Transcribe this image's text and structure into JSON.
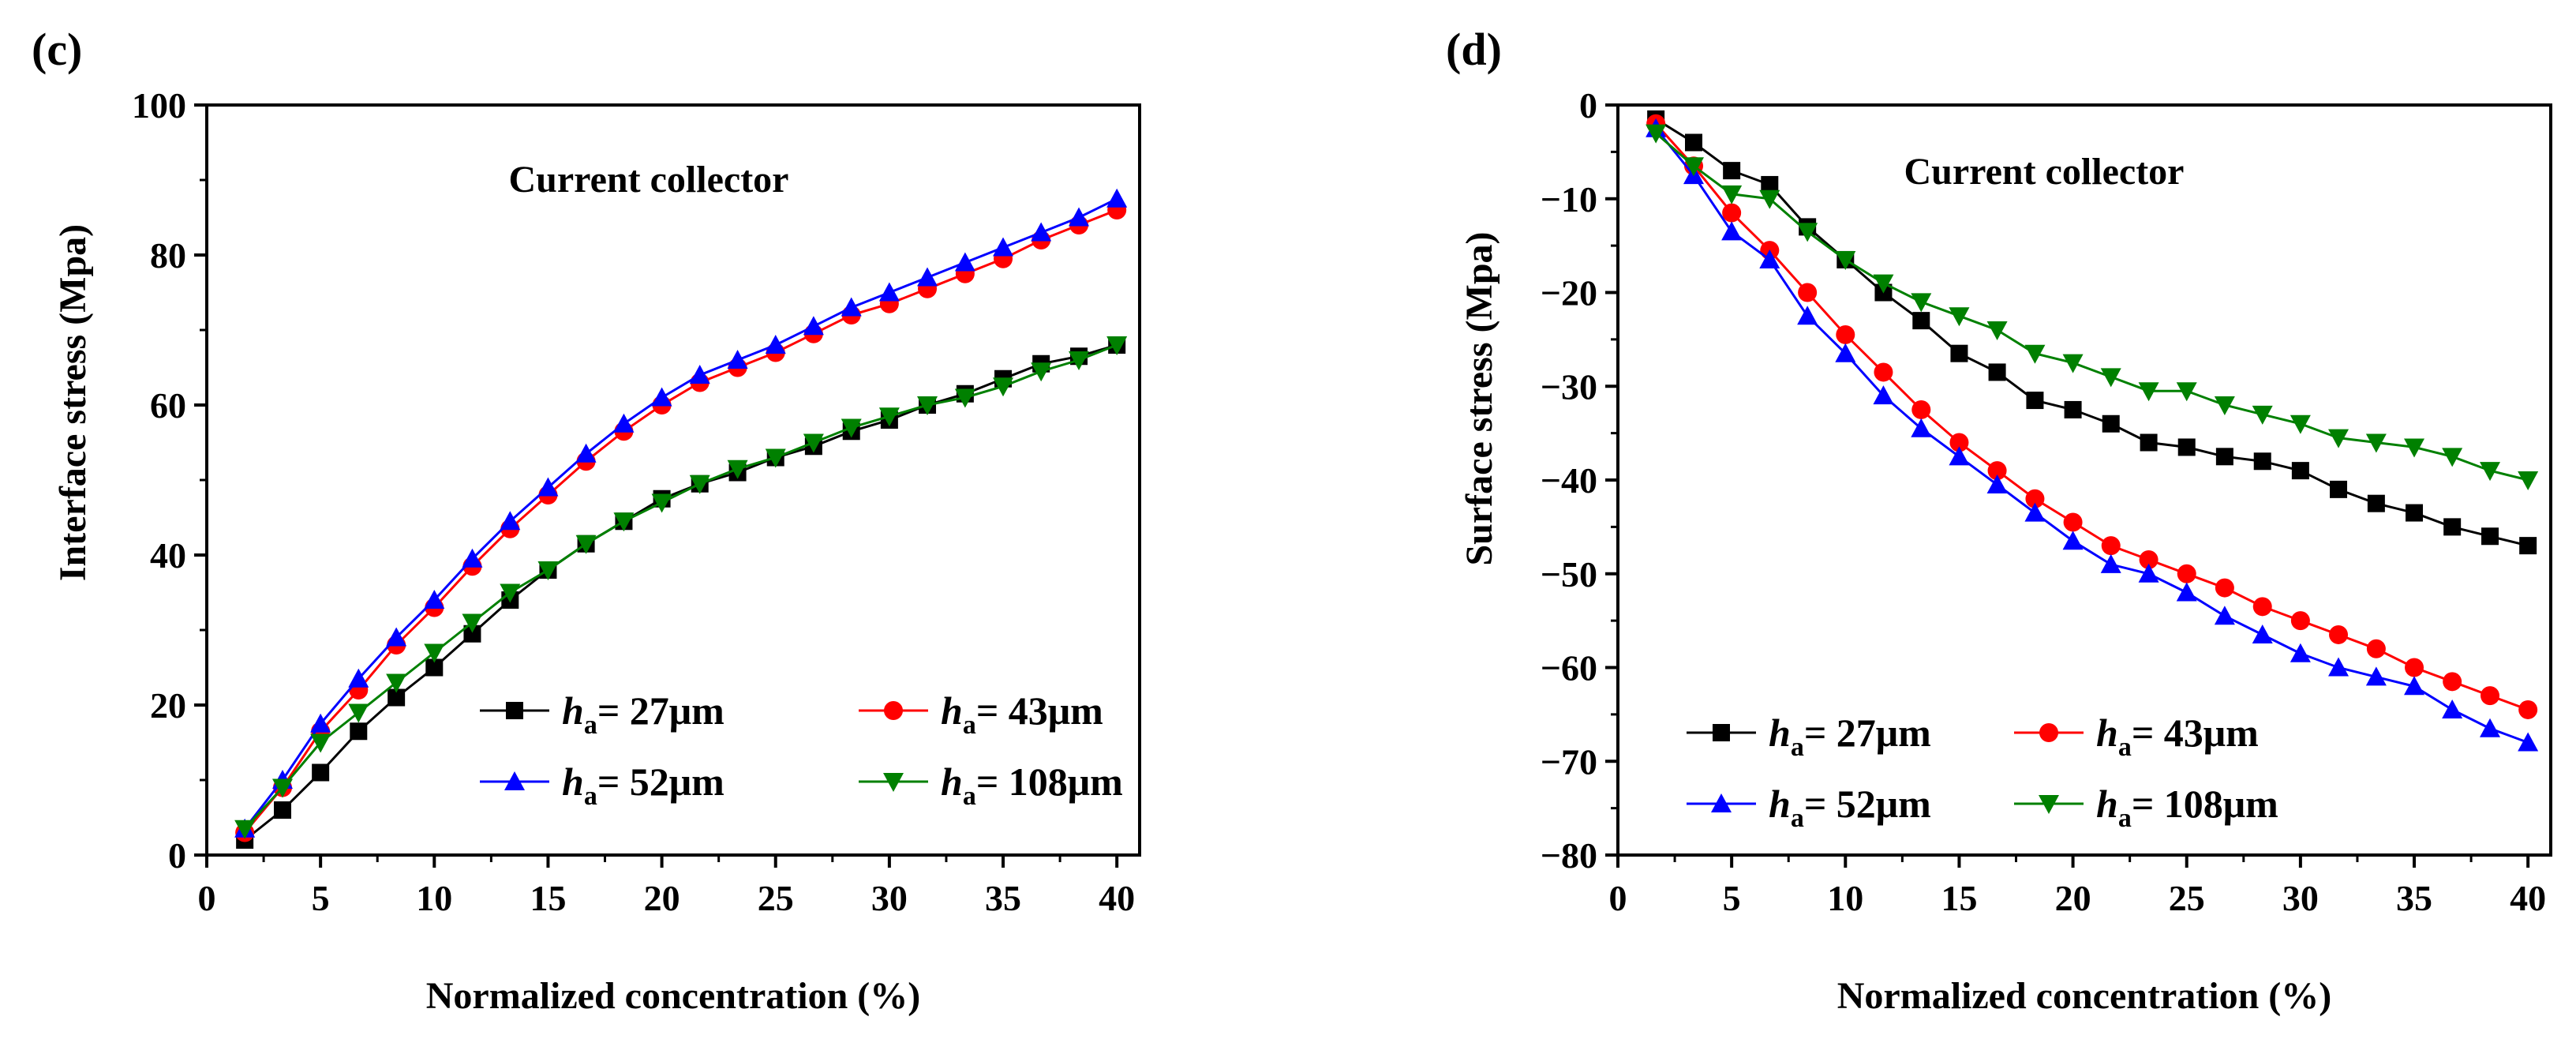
{
  "chart_data": [
    {
      "type": "line",
      "panel_label": "(c)",
      "annotation": "Current collector",
      "xlabel": "Normalized concentration (%)",
      "ylabel": "Interface stress (Mpa)",
      "xlim": [
        0,
        41
      ],
      "ylim": [
        0,
        100
      ],
      "x_ticks": [
        0,
        5,
        10,
        15,
        20,
        25,
        30,
        35,
        40
      ],
      "y_ticks": [
        0,
        20,
        40,
        60,
        80,
        100
      ],
      "x": [
        1.67,
        3.33,
        5.0,
        6.67,
        8.33,
        10.0,
        11.67,
        13.33,
        15.0,
        16.67,
        18.33,
        20.0,
        21.67,
        23.33,
        25.0,
        26.67,
        28.33,
        30.0,
        31.67,
        33.33,
        35.0,
        36.67,
        38.33,
        40.0
      ],
      "series": [
        {
          "name_sym": "h",
          "name_sub": "a",
          "name_val": "= 27μm",
          "color": "#000000",
          "marker": "square",
          "values": [
            2,
            6,
            11,
            16.5,
            21,
            25,
            29.5,
            34,
            38,
            41.5,
            44.5,
            47.5,
            49.5,
            51,
            53,
            54.5,
            56.5,
            58,
            60,
            61.5,
            63.5,
            65.5,
            66.5,
            68
          ]
        },
        {
          "name_sym": "h",
          "name_sub": "a",
          "name_val": "= 43μm",
          "color": "#ff0000",
          "marker": "circle",
          "values": [
            3,
            9,
            16.5,
            22,
            28,
            33,
            38.5,
            43.5,
            48,
            52.5,
            56.5,
            60,
            63,
            65,
            67,
            69.5,
            72,
            73.5,
            75.5,
            77.5,
            79.5,
            82,
            84,
            86
          ]
        },
        {
          "name_sym": "h",
          "name_sub": "a",
          "name_val": "= 52μm",
          "color": "#0000ff",
          "marker": "triangle-up",
          "values": [
            3.5,
            10,
            17.5,
            23.5,
            29,
            34,
            39.5,
            44.5,
            49,
            53.5,
            57.5,
            61,
            64,
            66,
            68,
            70.5,
            73,
            75,
            77,
            79,
            81,
            83,
            85,
            87.5
          ]
        },
        {
          "name_sym": "h",
          "name_sub": "a",
          "name_val": "= 108μm",
          "color": "#008000",
          "marker": "triangle-down",
          "values": [
            3.5,
            9,
            15,
            19,
            23,
            27,
            31,
            35,
            38,
            41.5,
            44.5,
            47,
            49.5,
            51.5,
            53,
            55,
            57,
            58.5,
            60,
            61,
            62.5,
            64.5,
            66,
            68
          ]
        }
      ]
    },
    {
      "type": "line",
      "panel_label": "(d)",
      "annotation": "Current collector",
      "xlabel": "Normalized concentration (%)",
      "ylabel": "Surface stress (Mpa)",
      "xlim": [
        0,
        41
      ],
      "ylim": [
        -80,
        0
      ],
      "x_ticks": [
        0,
        5,
        10,
        15,
        20,
        25,
        30,
        35,
        40
      ],
      "y_ticks": [
        0,
        -10,
        -20,
        -30,
        -40,
        -50,
        -60,
        -70,
        -80
      ],
      "x": [
        1.67,
        3.33,
        5.0,
        6.67,
        8.33,
        10.0,
        11.67,
        13.33,
        15.0,
        16.67,
        18.33,
        20.0,
        21.67,
        23.33,
        25.0,
        26.67,
        28.33,
        30.0,
        31.67,
        33.33,
        35.0,
        36.67,
        38.33,
        40.0
      ],
      "series": [
        {
          "name_sym": "h",
          "name_sub": "a",
          "name_val": "= 27μm",
          "color": "#000000",
          "marker": "square",
          "values": [
            -1.5,
            -4,
            -7,
            -8.5,
            -13,
            -16.5,
            -20,
            -23,
            -26.5,
            -28.5,
            -31.5,
            -32.5,
            -34,
            -36,
            -36.5,
            -37.5,
            -38,
            -39,
            -41,
            -42.5,
            -43.5,
            -45,
            -46,
            -47
          ]
        },
        {
          "name_sym": "h",
          "name_sub": "a",
          "name_val": "= 43μm",
          "color": "#ff0000",
          "marker": "circle",
          "values": [
            -2,
            -6.5,
            -11.5,
            -15.5,
            -20,
            -24.5,
            -28.5,
            -32.5,
            -36,
            -39,
            -42,
            -44.5,
            -47,
            -48.5,
            -50,
            -51.5,
            -53.5,
            -55,
            -56.5,
            -58,
            -60,
            -61.5,
            -63,
            -64.5
          ]
        },
        {
          "name_sym": "h",
          "name_sub": "a",
          "name_val": "= 52μm",
          "color": "#0000ff",
          "marker": "triangle-up",
          "values": [
            -2.5,
            -7.5,
            -13.5,
            -16.5,
            -22.5,
            -26.5,
            -31,
            -34.5,
            -37.5,
            -40.5,
            -43.5,
            -46.5,
            -49,
            -50,
            -52,
            -54.5,
            -56.5,
            -58.5,
            -60,
            -61,
            -62,
            -64.5,
            -66.5,
            -68
          ]
        },
        {
          "name_sym": "h",
          "name_sub": "a",
          "name_val": "= 108μm",
          "color": "#008000",
          "marker": "triangle-down",
          "values": [
            -3,
            -6.5,
            -9.5,
            -10,
            -13.5,
            -16.5,
            -19,
            -21,
            -22.5,
            -24,
            -26.5,
            -27.5,
            -29,
            -30.5,
            -30.5,
            -32,
            -33,
            -34,
            -35.5,
            -36,
            -36.5,
            -37.5,
            -39,
            -40
          ]
        }
      ]
    }
  ]
}
